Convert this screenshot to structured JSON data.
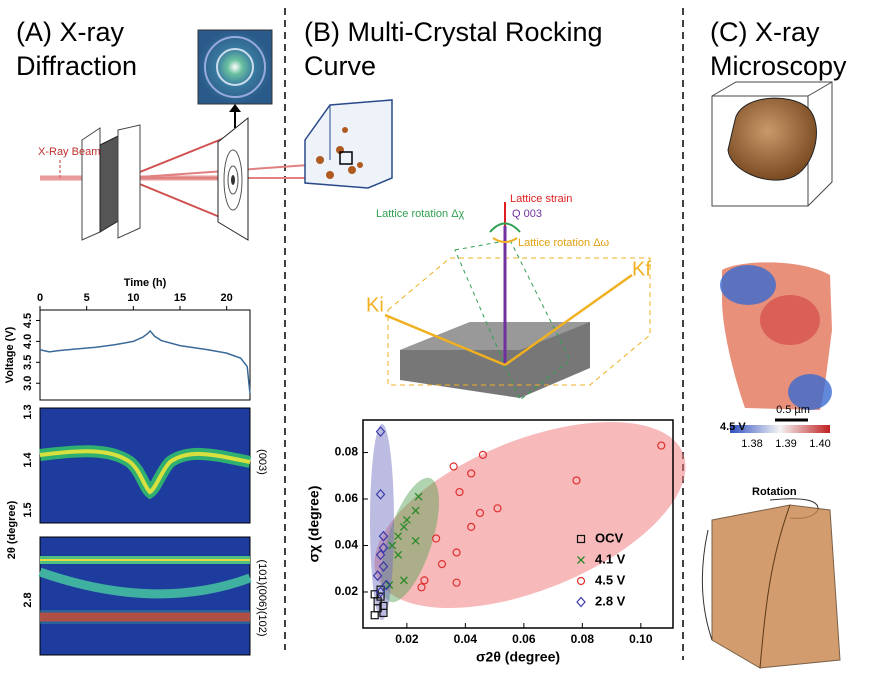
{
  "panels": {
    "a": {
      "title": [
        "(A) X-ray",
        "Diffraction"
      ],
      "beam_label": "X-Ray Beam",
      "heatmap_ticks": [
        "1.3",
        "1.4",
        "1.5",
        "2.8"
      ],
      "heatmap_axis": "2θ (degree)",
      "peaks": [
        "(003)",
        "(101)(006)(102)"
      ]
    },
    "b": {
      "title": [
        "(B) Multi-Crystal Rocking",
        "Curve"
      ],
      "strain": "Lattice strain",
      "q": "Q 003",
      "rot_chi": "Lattice rotation Δχ",
      "rot_omega": "Lattice rotation Δω",
      "ki": "Ki",
      "kf": "Kf"
    },
    "c": {
      "title": [
        "(C) X-ray",
        "Microscopy"
      ],
      "voltage": "4.5 V",
      "scale": "0.5 µm",
      "colorbar": [
        "1.38",
        "1.39",
        "1.40"
      ],
      "rotation": "Rotation"
    }
  },
  "chart_data": [
    {
      "type": "line",
      "x_label": "Time (h)",
      "y_label": "Voltage (V)",
      "color": "#3a6a9a",
      "x": [
        0,
        1,
        2,
        4,
        6,
        8,
        10,
        11,
        11.5,
        11.8,
        12.3,
        13,
        15,
        18,
        20,
        21.5,
        22.2,
        22.5
      ],
      "values": [
        3.8,
        3.75,
        3.78,
        3.82,
        3.86,
        3.92,
        4.0,
        4.1,
        4.18,
        4.25,
        4.12,
        4.02,
        3.9,
        3.8,
        3.72,
        3.6,
        3.4,
        2.75
      ],
      "xlim": [
        0,
        22.5
      ],
      "xticks": [
        0,
        5,
        10,
        15,
        20
      ],
      "ylim": [
        2.6,
        4.75
      ],
      "yticks": [
        {
          "value": 3,
          "label": "3.0"
        },
        3.5,
        {
          "value": 4,
          "label": "4.0"
        },
        4.5
      ]
    },
    {
      "type": "scatter",
      "x_label": "σ2θ (degree)",
      "y_label": "σχ (degree)",
      "legend": "lower right",
      "xlim": [
        0.005,
        0.111
      ],
      "xticks": [
        0.02,
        0.04,
        0.06,
        0.08,
        {
          "value": 0.1,
          "label": "0.10"
        }
      ],
      "ylim": [
        0.0045,
        0.094
      ],
      "yticks": [
        0.02,
        0.04,
        0.06,
        0.08
      ],
      "series": [
        {
          "name": "OCV",
          "color": "#111111",
          "marker": "square",
          "x": [
            0.009,
            0.01,
            0.01,
            0.011,
            0.011,
            0.012,
            0.009,
            0.012
          ],
          "values": [
            0.01,
            0.013,
            0.016,
            0.018,
            0.021,
            0.014,
            0.019,
            0.011
          ]
        },
        {
          "name": "4.1 V",
          "color": "#2a8a2a",
          "marker": "x",
          "x": [
            0.019,
            0.02,
            0.017,
            0.024,
            0.023,
            0.017,
            0.019,
            0.014,
            0.023,
            0.015
          ],
          "values": [
            0.048,
            0.051,
            0.044,
            0.061,
            0.042,
            0.036,
            0.025,
            0.023,
            0.055,
            0.04
          ]
        },
        {
          "name": "4.5 V",
          "color": "#e03030",
          "marker": "circle",
          "x": [
            0.107,
            0.078,
            0.051,
            0.046,
            0.042,
            0.036,
            0.038,
            0.045,
            0.042,
            0.03,
            0.037,
            0.037,
            0.032,
            0.026,
            0.025
          ],
          "values": [
            0.083,
            0.068,
            0.056,
            0.079,
            0.071,
            0.074,
            0.063,
            0.054,
            0.048,
            0.043,
            0.037,
            0.024,
            0.032,
            0.025,
            0.022
          ]
        },
        {
          "name": "2.8 V",
          "color": "#3a3aa8",
          "marker": "diamond",
          "x": [
            0.011,
            0.011,
            0.012,
            0.011,
            0.012,
            0.01,
            0.013,
            0.011,
            0.012
          ],
          "values": [
            0.089,
            0.062,
            0.044,
            0.036,
            0.031,
            0.027,
            0.023,
            0.02,
            0.039
          ]
        }
      ]
    }
  ]
}
